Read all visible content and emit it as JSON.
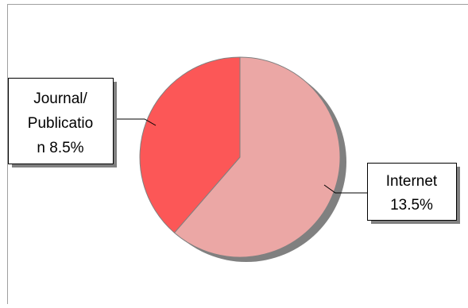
{
  "chart_data": {
    "type": "pie",
    "title": "",
    "slices": [
      {
        "label": "Internet",
        "value": 13.5,
        "value_text": "13.5%",
        "label_lines": [
          "Internet",
          "13.5%"
        ],
        "color": "#eba7a5"
      },
      {
        "label": "Journal/Publication",
        "value": 8.5,
        "value_text": "8.5%",
        "label_lines": [
          "Journal/",
          "Publicatio",
          "n 8.5%"
        ],
        "color": "#fc5757"
      }
    ],
    "legend": "none",
    "label_style": "boxed callouts with leader lines",
    "shadow_color": "#808080",
    "slice_outline_color": "#808080"
  }
}
